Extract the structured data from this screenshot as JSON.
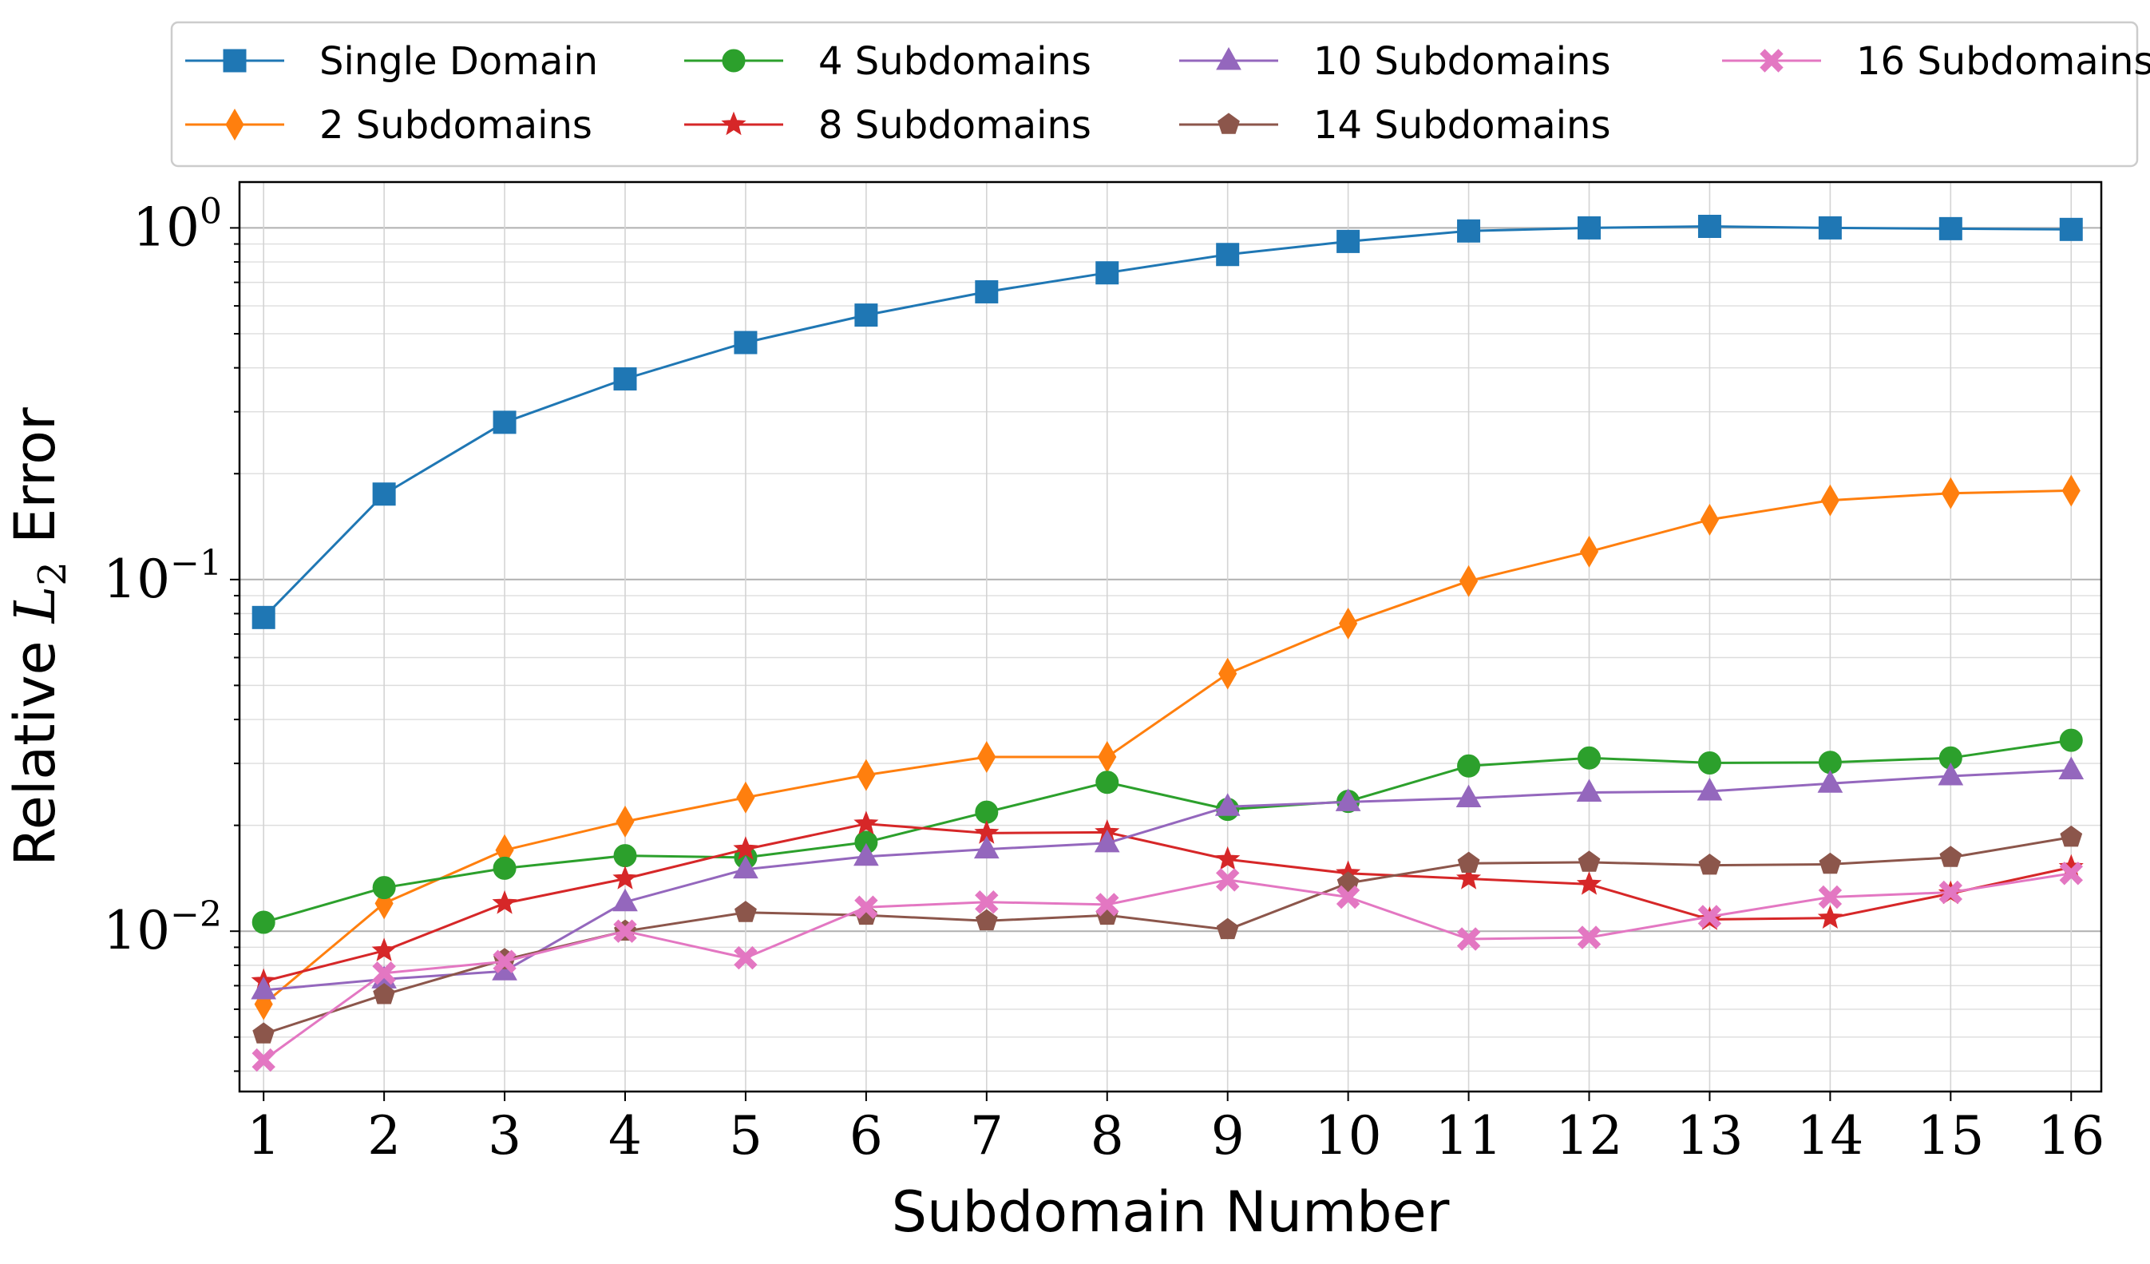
{
  "chart_data": {
    "type": "line",
    "xlabel": "Subdomain Number",
    "ylabel": {
      "prefix": "Relative ",
      "symbol": "L",
      "subscript": "2",
      "suffix": " Error"
    },
    "yscale": "log",
    "ylim": [
      0.0035,
      1.35
    ],
    "xlim": [
      0.8,
      16.25
    ],
    "grid": true,
    "legend_position": "top, outside plot",
    "x": [
      1,
      2,
      3,
      4,
      5,
      6,
      7,
      8,
      9,
      10,
      11,
      12,
      13,
      14,
      15,
      16
    ],
    "xtick_labels": [
      "1",
      "2",
      "3",
      "4",
      "5",
      "6",
      "7",
      "8",
      "9",
      "10",
      "11",
      "12",
      "13",
      "14",
      "15",
      "16"
    ],
    "ytick_labels": [
      {
        "value": 1,
        "base": "10",
        "exp": "0"
      },
      {
        "value": 0.1,
        "base": "10",
        "exp": "−1"
      },
      {
        "value": 0.01,
        "base": "10",
        "exp": "−2"
      }
    ],
    "series": [
      {
        "name": "Single Domain",
        "color": "#1f77b4",
        "marker": "square",
        "values": [
          0.078,
          0.175,
          0.28,
          0.372,
          0.472,
          0.565,
          0.658,
          0.745,
          0.84,
          0.915,
          0.98,
          1.0,
          1.01,
          1.0,
          0.995,
          0.99
        ]
      },
      {
        "name": "2 Subdomains",
        "color": "#ff7f0e",
        "marker": "thin-diamond",
        "values": [
          0.0062,
          0.012,
          0.017,
          0.0205,
          0.024,
          0.0278,
          0.0313,
          0.0313,
          0.054,
          0.075,
          0.099,
          0.12,
          0.148,
          0.168,
          0.176,
          0.179
        ]
      },
      {
        "name": "4 Subdomains",
        "color": "#2ca02c",
        "marker": "circle",
        "values": [
          0.0106,
          0.0133,
          0.0151,
          0.0164,
          0.0162,
          0.0179,
          0.0218,
          0.0265,
          0.0222,
          0.0234,
          0.0295,
          0.0311,
          0.0301,
          0.0302,
          0.0311,
          0.0349
        ]
      },
      {
        "name": "8 Subdomains",
        "color": "#d62728",
        "marker": "star",
        "values": [
          0.0072,
          0.0088,
          0.012,
          0.0141,
          0.0171,
          0.0202,
          0.019,
          0.0191,
          0.016,
          0.0146,
          0.0141,
          0.0136,
          0.0108,
          0.0109,
          0.0128,
          0.0152
        ]
      },
      {
        "name": "10 Subdomains",
        "color": "#9467bd",
        "marker": "triangle",
        "values": [
          0.0068,
          0.0073,
          0.0077,
          0.0121,
          0.015,
          0.0163,
          0.0171,
          0.0178,
          0.0226,
          0.0233,
          0.0239,
          0.0248,
          0.025,
          0.0263,
          0.0276,
          0.0287
        ]
      },
      {
        "name": "14 Subdomains",
        "color": "#8c564b",
        "marker": "pentagon",
        "values": [
          0.0051,
          0.0066,
          0.0083,
          0.01,
          0.0113,
          0.0111,
          0.0107,
          0.0111,
          0.0101,
          0.0137,
          0.0156,
          0.0157,
          0.0154,
          0.0155,
          0.0162,
          0.0185
        ]
      },
      {
        "name": "16 Subdomains",
        "color": "#e377c2",
        "marker": "x-filled",
        "values": [
          0.0043,
          0.0076,
          0.0082,
          0.01,
          0.0084,
          0.0117,
          0.0121,
          0.0119,
          0.014,
          0.0125,
          0.0095,
          0.0096,
          0.011,
          0.0125,
          0.0129,
          0.0146
        ]
      }
    ]
  }
}
